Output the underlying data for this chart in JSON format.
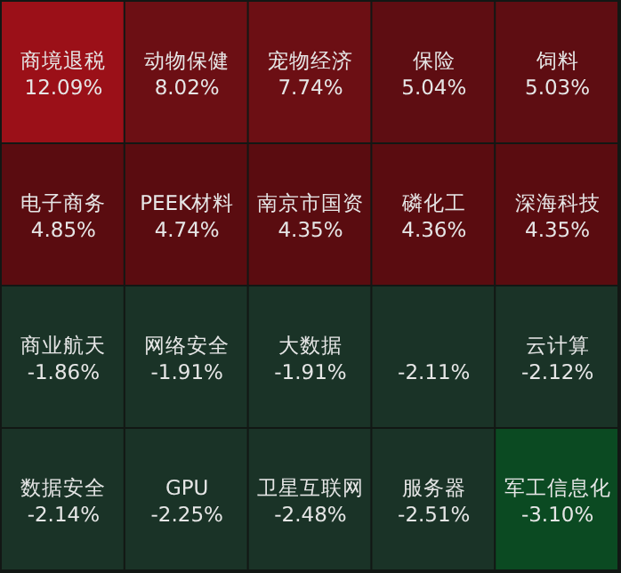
{
  "chart_data": {
    "type": "other",
    "categories": [
      "商境退税",
      "动物保健",
      "宠物经济",
      "保险",
      "饲料",
      "电子商务",
      "PEEK材料",
      "南京市国资",
      "磷化工",
      "深海科技",
      "商业航天",
      "网络安全",
      "大数据",
      null,
      "云计算",
      "数据安全",
      "GPU",
      "卫星互联网",
      "服务器",
      "军工信息化"
    ],
    "values": [
      12.09,
      8.02,
      7.74,
      5.04,
      5.03,
      4.85,
      4.74,
      4.35,
      4.36,
      4.35,
      -1.86,
      -1.91,
      -1.91,
      -2.11,
      -2.12,
      -2.14,
      -2.25,
      -2.48,
      -2.51,
      -3.1
    ],
    "value_labels": [
      "12.09%",
      "8.02%",
      "7.74%",
      "5.04%",
      "5.03%",
      "4.85%",
      "4.74%",
      "4.35%",
      "4.36%",
      "4.35%",
      "-1.86%",
      "-1.91%",
      "-1.91%",
      "-2.11%",
      "-2.12%",
      "-2.14%",
      "-2.25%",
      "-2.48%",
      "-2.51%",
      "-3.10%"
    ],
    "colors": [
      "#9b1018",
      "#6c0f14",
      "#6c0f14",
      "#5e0d12",
      "#5e0d12",
      "#5a0c10",
      "#5a0c10",
      "#5a0c10",
      "#5a0c10",
      "#5a0c10",
      "#1a3327",
      "#1a3327",
      "#1a3327",
      "#1a3327",
      "#1a3327",
      "#1a3327",
      "#1a3327",
      "#1a3327",
      "#1a3327",
      "#0b4a22"
    ]
  }
}
